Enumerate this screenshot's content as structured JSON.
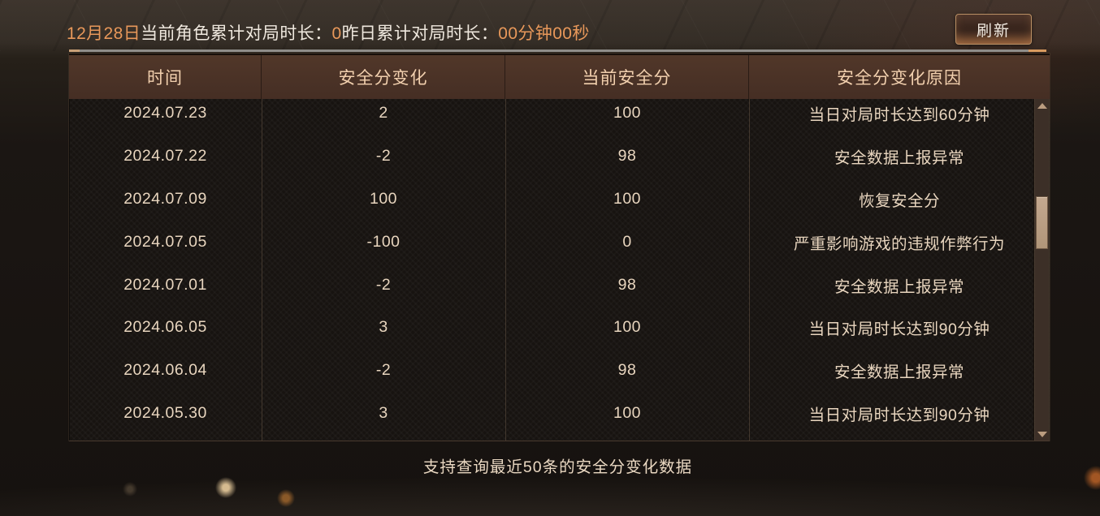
{
  "top_bar": {
    "date": "12月28日",
    "today_label": "当前角色累计对局时长：",
    "today_value": "0",
    "yesterday_label": "昨日累计对局时长：",
    "yesterday_value": "00分钟00秒",
    "refresh_button": "刷新"
  },
  "table": {
    "columns": [
      "时间",
      "安全分变化",
      "当前安全分",
      "安全分变化原因"
    ],
    "rows": [
      {
        "date": "2024.07.23",
        "change": "2",
        "score": "100",
        "reason": "当日对局时长达到60分钟"
      },
      {
        "date": "2024.07.22",
        "change": "-2",
        "score": "98",
        "reason": "安全数据上报异常"
      },
      {
        "date": "2024.07.09",
        "change": "100",
        "score": "100",
        "reason": "恢复安全分"
      },
      {
        "date": "2024.07.05",
        "change": "-100",
        "score": "0",
        "reason": "严重影响游戏的违规作弊行为"
      },
      {
        "date": "2024.07.01",
        "change": "-2",
        "score": "98",
        "reason": "安全数据上报异常"
      },
      {
        "date": "2024.06.05",
        "change": "3",
        "score": "100",
        "reason": "当日对局时长达到90分钟"
      },
      {
        "date": "2024.06.04",
        "change": "-2",
        "score": "98",
        "reason": "安全数据上报异常"
      },
      {
        "date": "2024.05.30",
        "change": "3",
        "score": "100",
        "reason": "当日对局时长达到90分钟"
      }
    ]
  },
  "footer": {
    "note": "支持查询最近50条的安全分变化数据"
  },
  "colors": {
    "accent_orange": "#e8985a",
    "text_cream": "#e9d6bf",
    "header_text": "#f2d0ae",
    "header_bg": "#4a3328"
  }
}
